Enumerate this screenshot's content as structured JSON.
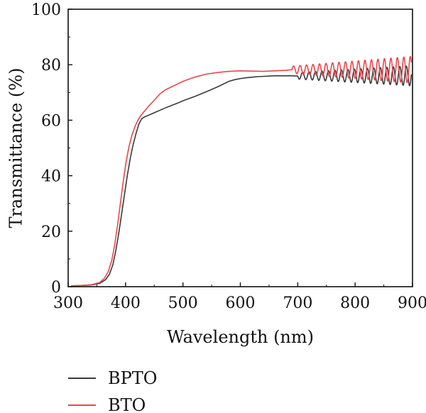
{
  "chart_data": {
    "type": "line",
    "title": "",
    "xlabel": "Wavelength (nm)",
    "ylabel": "Transmittance (%)",
    "xlim": [
      300,
      900
    ],
    "ylim": [
      0,
      100
    ],
    "xticks": [
      300,
      400,
      500,
      600,
      700,
      800,
      900
    ],
    "yticks": [
      0,
      20,
      40,
      60,
      80,
      100
    ],
    "grid": false,
    "legend_position": "bottom-left",
    "series": [
      {
        "name": "BPTO",
        "color": "#3a3a3a",
        "x": [
          305,
          320,
          340,
          355,
          365,
          372,
          378,
          383,
          388,
          393,
          398,
          403,
          408,
          413,
          418,
          423,
          428,
          433,
          440,
          450,
          460,
          470,
          480,
          490,
          500,
          520,
          540,
          560,
          580,
          590,
          600,
          610,
          620,
          630,
          640,
          650,
          660,
          670,
          680,
          690,
          700
        ],
        "y": [
          0.3,
          0.4,
          0.6,
          1.2,
          2.5,
          4.5,
          8,
          13,
          19,
          26,
          33,
          40,
          46,
          51,
          55,
          58.5,
          60.5,
          61.2,
          61.8,
          62.7,
          63.6,
          64.5,
          65.3,
          66.1,
          67,
          68.5,
          70.2,
          72,
          74,
          74.6,
          75,
          75.3,
          75.5,
          75.7,
          75.8,
          75.9,
          76,
          76,
          76,
          76,
          75.9
        ],
        "osc_start": 700,
        "osc_end": 898,
        "osc_base": 76,
        "osc_amp_start": 1.2,
        "osc_amp_end": 3.6,
        "osc_period": 11.3,
        "osc_phase": 3.14
      },
      {
        "name": "BTO",
        "color": "#e8474c",
        "x": [
          305,
          320,
          340,
          355,
          363,
          370,
          376,
          381,
          386,
          391,
          396,
          401,
          406,
          411,
          416,
          421,
          426,
          431,
          436,
          440,
          450,
          460,
          470,
          480,
          490,
          500,
          520,
          540,
          560,
          580,
          600,
          620,
          640,
          660,
          680,
          690
        ],
        "y": [
          0.3,
          0.4,
          0.7,
          1.5,
          3,
          5.5,
          9.5,
          15,
          22,
          30,
          38,
          45,
          50.5,
          54.5,
          57.5,
          59.8,
          61.5,
          62.8,
          64,
          65,
          67.2,
          69.5,
          71,
          72,
          73,
          74,
          75.5,
          76.6,
          77.2,
          77.6,
          77.8,
          77.7,
          77.6,
          77.8,
          78,
          78.2
        ],
        "osc_start": 690,
        "osc_end": 898,
        "osc_base": 78.2,
        "osc_amp_start": 1.3,
        "osc_amp_end": 4.8,
        "osc_period": 11.3,
        "osc_phase": 0
      }
    ]
  }
}
